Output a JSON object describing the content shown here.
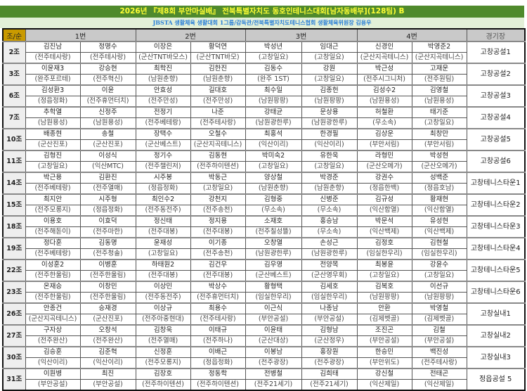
{
  "title": "2026년 『제8회 부안마실배』 전북특별자치도 동호인테니스대회[남자동배부](128팀) B",
  "subtitle": "JBSTA 생활체육 생활대회 1그룹/감독관/전북특별자치도테니스협회 생활체육위원장 김용우",
  "headers": {
    "group": "조/순",
    "c1": "1번",
    "c2": "2번",
    "c3": "3번",
    "c4": "4번",
    "venue": "경기장"
  },
  "colors": {
    "title_bg": "#4f8a2c",
    "title_text": "#ffff33",
    "subtitle_text": "#2a7fd8",
    "header_bg": "#c9c9c9",
    "corner_bg": "#c99a00"
  },
  "groups": [
    {
      "label": "2조",
      "players": [
        [
          "김진남",
          "(전주테사랑)"
        ],
        [
          "정명수",
          "(전주테사랑)"
        ],
        [
          "이장은",
          "(군산TNT바모스)"
        ],
        [
          "황덕연",
          "(군산TNT바모)"
        ],
        [
          "박성년",
          "(고창일요)"
        ],
        [
          "임대근",
          "(고창일요)"
        ],
        [
          "신경인",
          "(군산지곡테니스)"
        ],
        [
          "박영준2",
          "(군산지곡테니스)"
        ]
      ],
      "venue": "고창공설1"
    },
    {
      "label": "3조",
      "players": [
        [
          "이윤재3",
          "(완주포르테)"
        ],
        [
          "강승현",
          "(전주혁신)"
        ],
        [
          "최학진",
          "(남원춘향)"
        ],
        [
          "김한진",
          "(남원춘향)"
        ],
        [
          "김동수",
          "(완주 1ST)"
        ],
        [
          "강원",
          "(고창일요)"
        ],
        [
          "박근성",
          "(전주시그니처)"
        ],
        [
          "고재운",
          "(전주원팀)"
        ]
      ],
      "venue": "고창공설2"
    },
    {
      "label": "6조",
      "players": [
        [
          "김성환3",
          "(정읍정화)"
        ],
        [
          "이윤",
          "(전주휴먼터치)"
        ],
        [
          "안효성",
          "(전주만성)"
        ],
        [
          "길대호",
          "(전주만성)"
        ],
        [
          "최수일",
          "(남원팡팡)"
        ],
        [
          "김종헌",
          "(남원팡팡)"
        ],
        [
          "김성수2",
          "(남원용성)"
        ],
        [
          "김영철",
          "(남원용성)"
        ]
      ],
      "venue": "고창공설3"
    },
    {
      "label": "7조",
      "players": [
        [
          "추학열",
          "(남원용성)"
        ],
        [
          "신정주",
          "(남원용성)"
        ],
        [
          "전정기",
          "(전주베테랑)"
        ],
        [
          "나준",
          "(전주테사랑)"
        ],
        [
          "강태균",
          "(남원광한루)"
        ],
        [
          "문상용",
          "(남원광한루)"
        ],
        [
          "허철환",
          "(무소속)"
        ],
        [
          "태기준",
          "(고창일요)"
        ]
      ],
      "venue": "고창공설4"
    },
    {
      "label": "10조",
      "players": [
        [
          "배종현",
          "(군산진포)"
        ],
        [
          "송철",
          "(군산진포)"
        ],
        [
          "장택수",
          "(군산베스트)"
        ],
        [
          "오철수",
          "(군산지곡테니스)"
        ],
        [
          "최홍석",
          "(익산이리)"
        ],
        [
          "한경필",
          "(익산이리)"
        ],
        [
          "김상운",
          "(부안서림)"
        ],
        [
          "최창만",
          "(부안서림)"
        ]
      ],
      "venue": "고창공설5"
    },
    {
      "label": "11조",
      "players": [
        [
          "김형진",
          "(고창일요)"
        ],
        [
          "이성식",
          "(익산MTC)"
        ],
        [
          "정기수",
          "(전주챌린저)"
        ],
        [
          "김동현",
          "(전주하이텐션)"
        ],
        [
          "박미숙2",
          "(고창일요)"
        ],
        [
          "유한욱",
          "(고창일요)"
        ],
        [
          "라형민",
          "(군산오메가)"
        ],
        [
          "박성현",
          "(군산오메가)"
        ]
      ],
      "venue": "고창공설6"
    },
    {
      "label": "14조",
      "players": [
        [
          "박근용",
          "(전주베테랑)"
        ],
        [
          "김환진",
          "(전주열매)"
        ],
        [
          "시주봉",
          "(정읍정화)"
        ],
        [
          "박동근",
          "(고창일요)"
        ],
        [
          "양상철",
          "(남원춘향)"
        ],
        [
          "박경준",
          "(남원춘향)"
        ],
        [
          "강권수",
          "(정읍한백)"
        ],
        [
          "성백준",
          "(정읍호남)"
        ]
      ],
      "venue": "고창테니스타운1"
    },
    {
      "label": "15조",
      "players": [
        [
          "최지안",
          "(전주모롱지)"
        ],
        [
          "시주형",
          "(정읍정화)"
        ],
        [
          "최인수2",
          "(전주동전주)"
        ],
        [
          "강천지",
          "(전주송천)"
        ],
        [
          "김형중",
          "(무소속)"
        ],
        [
          "신병준",
          "(무소속)"
        ],
        [
          "김규성",
          "(익산함열)"
        ],
        [
          "황재현",
          "(익산함열)"
        ]
      ],
      "venue": "고창테니스타운2"
    },
    {
      "label": "18조",
      "players": [
        [
          "이용호",
          "(전주해돋이)"
        ],
        [
          "이효덕",
          "(전주마한)"
        ],
        [
          "정신태",
          "(전주대봉)"
        ],
        [
          "정지용",
          "(전주대봉)"
        ],
        [
          "소재호",
          "(전주칠성뜰)"
        ],
        [
          "홍승남",
          "(무소속)"
        ],
        [
          "박문석",
          "(익산백제)"
        ],
        [
          "유성현",
          "(익산백제)"
        ]
      ],
      "venue": "고창테니스타운3"
    },
    {
      "label": "19조",
      "players": [
        [
          "정다훈",
          "(전주베테랑)"
        ],
        [
          "김동명",
          "(전주청솔)"
        ],
        [
          "윤재성",
          "(고창일요)"
        ],
        [
          "이기종",
          "(전주송천)"
        ],
        [
          "오창열",
          "(남원광한루)"
        ],
        [
          "손성근",
          "(남원광한루)"
        ],
        [
          "김정호",
          "(임실한우리)"
        ],
        [
          "김현철",
          "(임실한우리)"
        ]
      ],
      "venue": "고창테니스타운4"
    },
    {
      "label": "22조",
      "players": [
        [
          "이성훈2",
          "(전주한울림)"
        ],
        [
          "이병훈",
          "(전주한울림)"
        ],
        [
          "하태원2",
          "(전주대봉)"
        ],
        [
          "김건우",
          "(전주대봉)"
        ],
        [
          "김우영",
          "(군산베스트)"
        ],
        [
          "전양목",
          "(군산영우회)"
        ],
        [
          "최봉윤",
          "(고창일요)"
        ],
        [
          "강윤수",
          "(고창일요)"
        ]
      ],
      "venue": "고창테니스타운5"
    },
    {
      "label": "23조",
      "players": [
        [
          "온재승",
          "(전주한울림)"
        ],
        [
          "이창민",
          "(전주한울림)"
        ],
        [
          "이상민",
          "(전주동전주)"
        ],
        [
          "박상수",
          "(전주휴먼터치)"
        ],
        [
          "황형택",
          "(임실한우리)"
        ],
        [
          "김세호",
          "(임실한우리)"
        ],
        [
          "김복호",
          "(남원팡팡)"
        ],
        [
          "이선규",
          "(남원팡팡)"
        ]
      ],
      "venue": "고창테니스타운6"
    },
    {
      "label": "26조",
      "players": [
        [
          "안종건",
          "(군산지곡테니스)"
        ],
        [
          "승재경",
          "(군산진포)"
        ],
        [
          "이상규",
          "(전주아중현대)"
        ],
        [
          "최용수",
          "(전주테사랑)"
        ],
        [
          "이근식",
          "(부안공설)"
        ],
        [
          "나종남",
          "(부안공설)"
        ],
        [
          "안환",
          "(김제벳골)"
        ],
        [
          "박영철",
          "(김제벳골)"
        ]
      ],
      "venue": "고창실내1"
    },
    {
      "label": "27조",
      "players": [
        [
          "구자상",
          "(전주완산)"
        ],
        [
          "오창석",
          "(전주완산)"
        ],
        [
          "김창욱",
          "(전주열매)"
        ],
        [
          "이태규",
          "(전주하나)"
        ],
        [
          "이윤태",
          "(군산대상)"
        ],
        [
          "김형남",
          "(군산정우)"
        ],
        [
          "조진곤",
          "(부안공설)"
        ],
        [
          "김철",
          "(부안공설)"
        ]
      ],
      "venue": "고창실내2"
    },
    {
      "label": "30조",
      "players": [
        [
          "김승훈",
          "(익산이리)"
        ],
        [
          "김준혁",
          "(익산이리)"
        ],
        [
          "신정훈",
          "(전주모롱지)"
        ],
        [
          "이배근",
          "(정읍정화)"
        ],
        [
          "이봉남",
          "(전주광장)"
        ],
        [
          "홍장원",
          "(전주광장)"
        ],
        [
          "한승민",
          "(부안위도)"
        ],
        [
          "백진성",
          "(전주테사랑)"
        ]
      ],
      "venue": "고창실내3"
    },
    {
      "label": "31조",
      "players": [
        [
          "이원병",
          "(부안공설)"
        ],
        [
          "최진",
          "(부안공설)"
        ],
        [
          "김장호",
          "(전주하이텐션)"
        ],
        [
          "정동학",
          "(전주하이텐션)"
        ],
        [
          "전병철",
          "(전주21세기)"
        ],
        [
          "김희태",
          "(전주21세기)"
        ],
        [
          "강신철",
          "(익산제일)"
        ],
        [
          "전태곤",
          "(익산제일)"
        ]
      ],
      "venue": "정읍공설 5"
    }
  ]
}
